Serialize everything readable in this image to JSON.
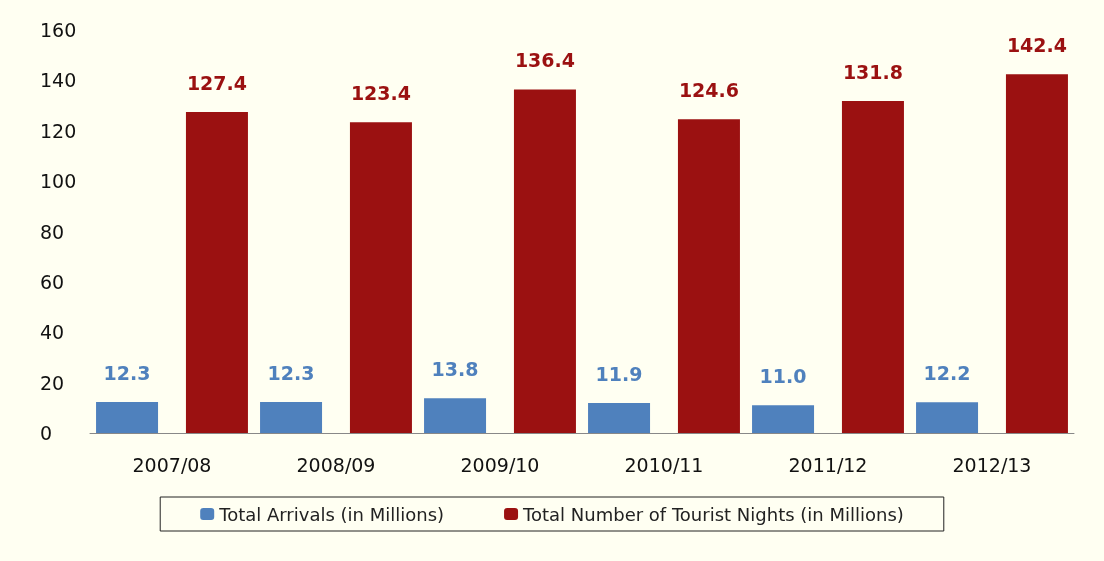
{
  "chart_data": {
    "type": "bar",
    "categories": [
      "2007/08",
      "2008/09",
      "2009/10",
      "2010/11",
      "2011/12",
      "2012/13"
    ],
    "series": [
      {
        "name": "Total Arrivals (in Millions)",
        "color": "#4f81bd",
        "values": [
          12.3,
          12.3,
          13.8,
          11.9,
          11.0,
          12.2
        ],
        "value_labels": [
          "12.3",
          "12.3",
          "13.8",
          "11.9",
          "11.0",
          "12.2"
        ]
      },
      {
        "name": "Total Number of Tourist Nights (in Millions)",
        "color": "#9b1111",
        "values": [
          127.4,
          123.4,
          136.4,
          124.6,
          131.8,
          142.4
        ],
        "value_labels": [
          "127.4",
          "123.4",
          "136.4",
          "124.6",
          "131.8",
          "142.4"
        ]
      }
    ],
    "ylim": [
      0,
      160
    ],
    "yticks": [
      0,
      20,
      40,
      60,
      80,
      100,
      120,
      140,
      160
    ],
    "grid": false,
    "legend": "bottom"
  }
}
